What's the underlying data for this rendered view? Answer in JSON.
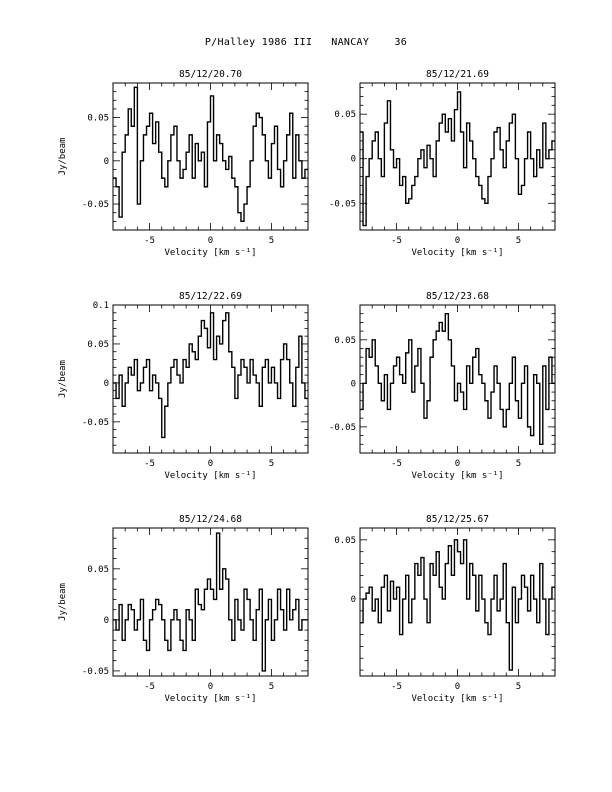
{
  "page": {
    "title": "P/Halley 1986 III   NANCAY    36"
  },
  "chart_data": [
    {
      "type": "line",
      "title": "85/12/20.70",
      "xlabel": "Velocity [km s⁻¹]",
      "ylabel": "Jy/beam",
      "xlim": [
        -8,
        8
      ],
      "ylim": [
        -0.08,
        0.09
      ],
      "xticks": [
        -5,
        0,
        5
      ],
      "yticks": [
        -0.05,
        0,
        0.05
      ],
      "ytick_labels": [
        "-0.05",
        "0",
        "0.05"
      ],
      "series": [
        {
          "x": [
            -8.0,
            -7.75,
            -7.5,
            -7.25,
            -7.0,
            -6.75,
            -6.5,
            -6.25,
            -6.0,
            -5.75,
            -5.5,
            -5.25,
            -5.0,
            -4.75,
            -4.5,
            -4.25,
            -4.0,
            -3.75,
            -3.5,
            -3.25,
            -3.0,
            -2.75,
            -2.5,
            -2.25,
            -2.0,
            -1.75,
            -1.5,
            -1.25,
            -1.0,
            -0.75,
            -0.5,
            -0.25,
            0.0,
            0.25,
            0.5,
            0.75,
            1.0,
            1.25,
            1.5,
            1.75,
            2.0,
            2.25,
            2.5,
            2.75,
            3.0,
            3.25,
            3.5,
            3.75,
            4.0,
            4.25,
            4.5,
            4.75,
            5.0,
            5.25,
            5.5,
            5.75,
            6.0,
            6.25,
            6.5,
            6.75,
            7.0,
            7.25,
            7.5,
            7.75
          ],
          "values": [
            -0.02,
            -0.03,
            -0.065,
            0.01,
            0.03,
            0.06,
            0.04,
            0.085,
            -0.05,
            0.0,
            0.03,
            0.04,
            0.055,
            0.02,
            0.045,
            0.01,
            -0.02,
            -0.03,
            0.0,
            0.03,
            0.04,
            0.0,
            -0.02,
            -0.01,
            0.01,
            0.03,
            -0.02,
            0.02,
            0.0,
            0.01,
            -0.03,
            0.045,
            0.075,
            0.0,
            0.03,
            0.02,
            0.0,
            -0.01,
            0.005,
            -0.02,
            -0.03,
            -0.06,
            -0.07,
            -0.05,
            -0.03,
            0.0,
            0.04,
            0.055,
            0.05,
            0.03,
            0.0,
            -0.02,
            0.02,
            0.04,
            -0.01,
            -0.03,
            0.0,
            0.03,
            0.055,
            -0.02,
            0.03,
            0.0,
            -0.02,
            -0.01
          ]
        }
      ]
    },
    {
      "type": "line",
      "title": "85/12/21.69",
      "xlabel": "Velocity [km s⁻¹]",
      "ylabel": "",
      "xlim": [
        -8,
        8
      ],
      "ylim": [
        -0.08,
        0.085
      ],
      "xticks": [
        -5,
        0,
        5
      ],
      "yticks": [
        -0.05,
        0,
        0.05
      ],
      "ytick_labels": [
        "-0.05",
        "0",
        "0.05"
      ],
      "series": [
        {
          "x": [
            -8.0,
            -7.75,
            -7.5,
            -7.25,
            -7.0,
            -6.75,
            -6.5,
            -6.25,
            -6.0,
            -5.75,
            -5.5,
            -5.25,
            -5.0,
            -4.75,
            -4.5,
            -4.25,
            -4.0,
            -3.75,
            -3.5,
            -3.25,
            -3.0,
            -2.75,
            -2.5,
            -2.25,
            -2.0,
            -1.75,
            -1.5,
            -1.25,
            -1.0,
            -0.75,
            -0.5,
            -0.25,
            0.0,
            0.25,
            0.5,
            0.75,
            1.0,
            1.25,
            1.5,
            1.75,
            2.0,
            2.25,
            2.5,
            2.75,
            3.0,
            3.25,
            3.5,
            3.75,
            4.0,
            4.25,
            4.5,
            4.75,
            5.0,
            5.25,
            5.5,
            5.75,
            6.0,
            6.25,
            6.5,
            6.75,
            7.0,
            7.25,
            7.5,
            7.75
          ],
          "values": [
            0.03,
            -0.075,
            -0.02,
            0.0,
            0.02,
            0.03,
            0.0,
            -0.02,
            0.04,
            0.065,
            0.01,
            -0.01,
            0.0,
            -0.03,
            -0.02,
            -0.05,
            -0.045,
            -0.03,
            -0.02,
            0.0,
            0.01,
            -0.01,
            0.015,
            0.0,
            -0.02,
            0.02,
            0.04,
            0.05,
            0.03,
            0.045,
            0.02,
            0.055,
            0.075,
            0.03,
            -0.01,
            0.04,
            0.02,
            0.0,
            -0.02,
            -0.03,
            -0.045,
            -0.05,
            -0.02,
            0.0,
            0.03,
            0.035,
            0.01,
            -0.01,
            0.02,
            0.04,
            0.05,
            0.0,
            -0.04,
            -0.03,
            0.0,
            0.03,
            0.0,
            -0.02,
            0.01,
            -0.01,
            0.04,
            0.0,
            0.01,
            0.02
          ]
        }
      ]
    },
    {
      "type": "line",
      "title": "85/12/22.69",
      "xlabel": "Velocity [km s⁻¹]",
      "ylabel": "Jy/beam",
      "xlim": [
        -8,
        8
      ],
      "ylim": [
        -0.09,
        0.1
      ],
      "xticks": [
        -5,
        0,
        5
      ],
      "yticks": [
        -0.05,
        0,
        0.05,
        0.1
      ],
      "ytick_labels": [
        "-0.05",
        "0",
        "0.05",
        "0.1"
      ],
      "series": [
        {
          "x": [
            -8.0,
            -7.75,
            -7.5,
            -7.25,
            -7.0,
            -6.75,
            -6.5,
            -6.25,
            -6.0,
            -5.75,
            -5.5,
            -5.25,
            -5.0,
            -4.75,
            -4.5,
            -4.25,
            -4.0,
            -3.75,
            -3.5,
            -3.25,
            -3.0,
            -2.75,
            -2.5,
            -2.25,
            -2.0,
            -1.75,
            -1.5,
            -1.25,
            -1.0,
            -0.75,
            -0.5,
            -0.25,
            0.0,
            0.25,
            0.5,
            0.75,
            1.0,
            1.25,
            1.5,
            1.75,
            2.0,
            2.25,
            2.5,
            2.75,
            3.0,
            3.25,
            3.5,
            3.75,
            4.0,
            4.25,
            4.5,
            4.75,
            5.0,
            5.25,
            5.5,
            5.75,
            6.0,
            6.25,
            6.5,
            6.75,
            7.0,
            7.25,
            7.5,
            7.75
          ],
          "values": [
            0.0,
            -0.02,
            0.01,
            -0.03,
            0.0,
            0.02,
            0.01,
            0.03,
            -0.01,
            0.0,
            0.02,
            0.03,
            -0.01,
            0.01,
            0.0,
            -0.02,
            -0.07,
            -0.03,
            0.0,
            0.02,
            0.03,
            0.01,
            0.0,
            0.03,
            0.02,
            0.05,
            0.04,
            0.03,
            0.06,
            0.08,
            0.07,
            0.045,
            0.09,
            0.03,
            0.06,
            0.05,
            0.08,
            0.09,
            0.04,
            0.02,
            -0.02,
            0.01,
            0.03,
            0.02,
            0.0,
            0.03,
            0.01,
            0.0,
            -0.03,
            0.02,
            0.03,
            0.0,
            0.02,
            0.0,
            -0.02,
            0.03,
            0.05,
            0.03,
            0.0,
            -0.03,
            0.02,
            0.06,
            0.0,
            -0.02
          ]
        }
      ]
    },
    {
      "type": "line",
      "title": "85/12/23.68",
      "xlabel": "Velocity [km s⁻¹]",
      "ylabel": "",
      "xlim": [
        -8,
        8
      ],
      "ylim": [
        -0.08,
        0.09
      ],
      "xticks": [
        -5,
        0,
        5
      ],
      "yticks": [
        -0.05,
        0,
        0.05
      ],
      "ytick_labels": [
        "-0.05",
        "0",
        "0.05"
      ],
      "series": [
        {
          "x": [
            -8.0,
            -7.75,
            -7.5,
            -7.25,
            -7.0,
            -6.75,
            -6.5,
            -6.25,
            -6.0,
            -5.75,
            -5.5,
            -5.25,
            -5.0,
            -4.75,
            -4.5,
            -4.25,
            -4.0,
            -3.75,
            -3.5,
            -3.25,
            -3.0,
            -2.75,
            -2.5,
            -2.25,
            -2.0,
            -1.75,
            -1.5,
            -1.25,
            -1.0,
            -0.75,
            -0.5,
            -0.25,
            0.0,
            0.25,
            0.5,
            0.75,
            1.0,
            1.25,
            1.5,
            1.75,
            2.0,
            2.25,
            2.5,
            2.75,
            3.0,
            3.25,
            3.5,
            3.75,
            4.0,
            4.25,
            4.5,
            4.75,
            5.0,
            5.25,
            5.5,
            5.75,
            6.0,
            6.25,
            6.5,
            6.75,
            7.0,
            7.25,
            7.5,
            7.75
          ],
          "values": [
            -0.03,
            0.0,
            0.04,
            0.03,
            0.05,
            0.02,
            0.0,
            -0.02,
            0.01,
            -0.03,
            0.0,
            0.02,
            0.03,
            0.01,
            0.0,
            0.035,
            0.05,
            -0.01,
            0.02,
            0.04,
            0.0,
            -0.04,
            -0.02,
            0.03,
            0.05,
            0.06,
            0.07,
            0.06,
            0.08,
            0.05,
            0.02,
            -0.02,
            0.0,
            -0.01,
            -0.03,
            0.02,
            0.0,
            0.03,
            0.04,
            0.01,
            0.0,
            -0.02,
            -0.04,
            -0.01,
            0.02,
            0.0,
            -0.03,
            -0.05,
            -0.03,
            0.0,
            0.03,
            -0.02,
            -0.04,
            0.0,
            0.02,
            -0.05,
            -0.06,
            0.01,
            0.0,
            -0.07,
            0.02,
            -0.03,
            0.03,
            0.0
          ]
        }
      ]
    },
    {
      "type": "line",
      "title": "85/12/24.68",
      "xlabel": "Velocity [km s⁻¹]",
      "ylabel": "Jy/beam",
      "xlim": [
        -8,
        8
      ],
      "ylim": [
        -0.055,
        0.09
      ],
      "xticks": [
        -5,
        0,
        5
      ],
      "yticks": [
        -0.05,
        0,
        0.05
      ],
      "ytick_labels": [
        "-0.05",
        "0",
        "0.05"
      ],
      "series": [
        {
          "x": [
            -8.0,
            -7.75,
            -7.5,
            -7.25,
            -7.0,
            -6.75,
            -6.5,
            -6.25,
            -6.0,
            -5.75,
            -5.5,
            -5.25,
            -5.0,
            -4.75,
            -4.5,
            -4.25,
            -4.0,
            -3.75,
            -3.5,
            -3.25,
            -3.0,
            -2.75,
            -2.5,
            -2.25,
            -2.0,
            -1.75,
            -1.5,
            -1.25,
            -1.0,
            -0.75,
            -0.5,
            -0.25,
            0.0,
            0.25,
            0.5,
            0.75,
            1.0,
            1.25,
            1.5,
            1.75,
            2.0,
            2.25,
            2.5,
            2.75,
            3.0,
            3.25,
            3.5,
            3.75,
            4.0,
            4.25,
            4.5,
            4.75,
            5.0,
            5.25,
            5.5,
            5.75,
            6.0,
            6.25,
            6.5,
            6.75,
            7.0,
            7.25,
            7.5,
            7.75
          ],
          "values": [
            0.0,
            -0.01,
            0.015,
            -0.02,
            0.0,
            0.015,
            0.01,
            -0.01,
            0.0,
            0.02,
            -0.02,
            -0.03,
            0.0,
            0.01,
            0.02,
            0.015,
            0.0,
            -0.02,
            -0.03,
            0.0,
            0.01,
            0.0,
            -0.02,
            -0.03,
            0.01,
            0.0,
            -0.02,
            0.03,
            0.015,
            0.01,
            0.03,
            0.04,
            0.03,
            0.02,
            0.085,
            0.03,
            0.05,
            0.04,
            0.0,
            -0.02,
            0.02,
            0.0,
            -0.01,
            0.03,
            0.02,
            0.0,
            -0.02,
            0.01,
            0.03,
            -0.05,
            0.0,
            0.02,
            -0.02,
            0.0,
            0.03,
            0.01,
            -0.01,
            0.03,
            0.0,
            0.01,
            0.02,
            -0.01,
            0.0,
            0.0
          ]
        }
      ]
    },
    {
      "type": "line",
      "title": "85/12/25.67",
      "xlabel": "Velocity [km s⁻¹]",
      "ylabel": "",
      "xlim": [
        -8,
        8
      ],
      "ylim": [
        -0.065,
        0.06
      ],
      "xticks": [
        -5,
        0,
        5
      ],
      "yticks": [
        0,
        0.05
      ],
      "ytick_labels": [
        "0",
        "0.05"
      ],
      "series": [
        {
          "x": [
            -8.0,
            -7.75,
            -7.5,
            -7.25,
            -7.0,
            -6.75,
            -6.5,
            -6.25,
            -6.0,
            -5.75,
            -5.5,
            -5.25,
            -5.0,
            -4.75,
            -4.5,
            -4.25,
            -4.0,
            -3.75,
            -3.5,
            -3.25,
            -3.0,
            -2.75,
            -2.5,
            -2.25,
            -2.0,
            -1.75,
            -1.5,
            -1.25,
            -1.0,
            -0.75,
            -0.5,
            -0.25,
            0.0,
            0.25,
            0.5,
            0.75,
            1.0,
            1.25,
            1.5,
            1.75,
            2.0,
            2.25,
            2.5,
            2.75,
            3.0,
            3.25,
            3.5,
            3.75,
            4.0,
            4.25,
            4.5,
            4.75,
            5.0,
            5.25,
            5.5,
            5.75,
            6.0,
            6.25,
            6.5,
            6.75,
            7.0,
            7.25,
            7.5,
            7.75
          ],
          "values": [
            -0.02,
            0.0,
            0.005,
            0.01,
            -0.01,
            0.0,
            -0.02,
            0.01,
            0.02,
            -0.01,
            0.015,
            0.0,
            0.01,
            -0.03,
            0.0,
            0.02,
            -0.02,
            0.0,
            0.03,
            0.02,
            0.035,
            0.0,
            -0.02,
            0.03,
            0.02,
            0.04,
            0.01,
            0.0,
            0.03,
            0.045,
            0.02,
            0.05,
            0.04,
            0.03,
            0.05,
            0.0,
            0.03,
            0.02,
            -0.01,
            0.02,
            0.0,
            -0.02,
            -0.03,
            0.0,
            0.02,
            -0.01,
            0.0,
            0.03,
            -0.02,
            -0.06,
            0.01,
            -0.02,
            0.0,
            0.02,
            0.01,
            -0.01,
            0.02,
            0.0,
            -0.02,
            0.03,
            0.0,
            -0.03,
            0.0,
            0.01
          ]
        }
      ]
    }
  ]
}
